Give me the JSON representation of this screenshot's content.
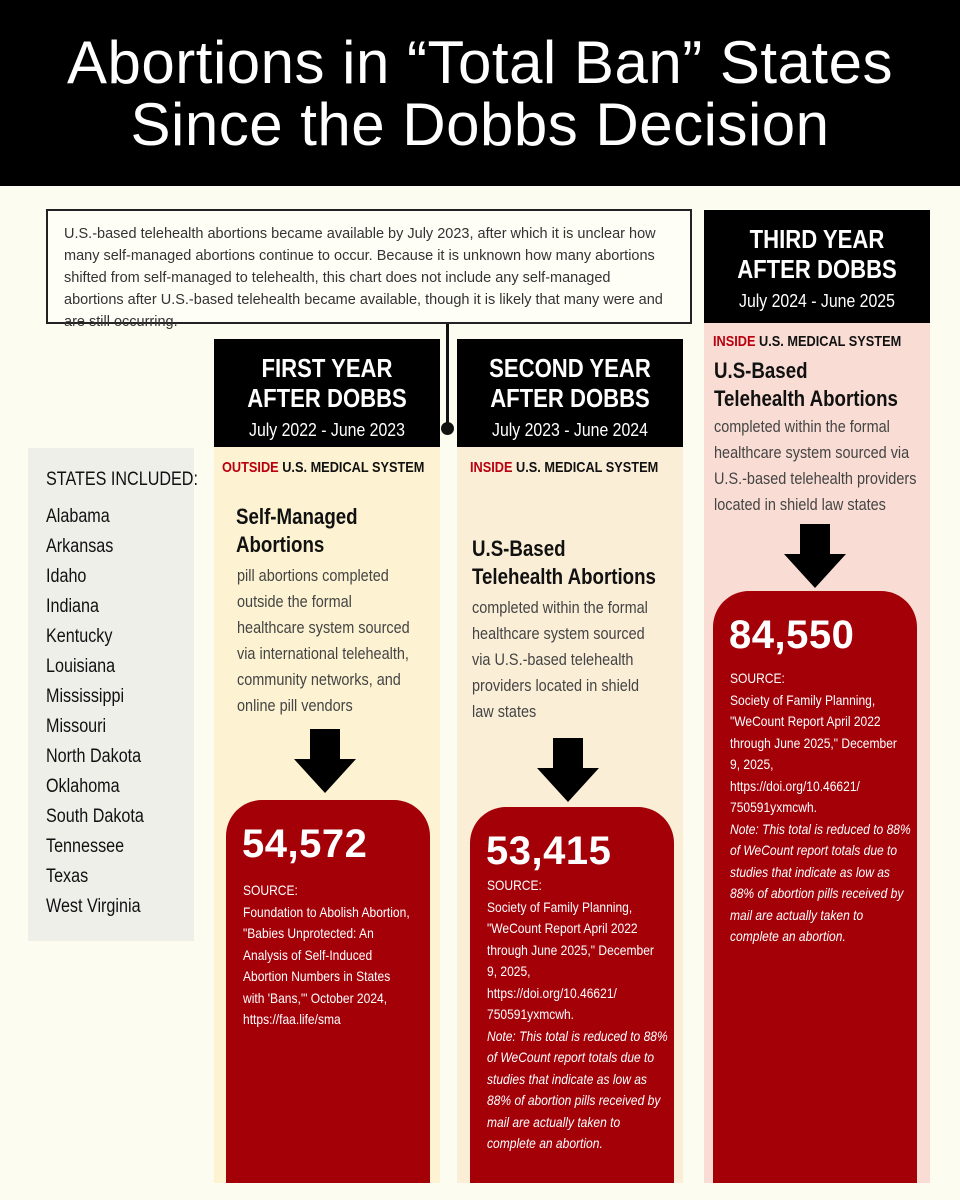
{
  "header": {
    "title_line1": "Abortions in “Total Ban” States",
    "title_line2": "Since the Dobbs Decision"
  },
  "note": {
    "text": "U.S.-based telehealth abortions became available by July 2023, after which it is unclear how many self-managed abortions continue to occur. Because it is unknown how many abortions shifted from self-managed to telehealth, this chart does not include any self-managed abortions after U.S.-based telehealth became available, though it is likely that many were and are still occurring."
  },
  "states": {
    "title": "STATES INCLUDED:",
    "list": [
      "Alabama",
      "Arkansas",
      "Idaho",
      "Indiana",
      "Kentucky",
      "Louisiana",
      "Mississippi",
      "Missouri",
      "North Dakota",
      "Oklahoma",
      "South Dakota",
      "Tennessee",
      "Texas",
      "West Virginia"
    ]
  },
  "columns": [
    {
      "year_line1": "FIRST YEAR",
      "year_line2": "AFTER DOBBS",
      "range": "July 2022 - June 2023",
      "system_highlight": "OUTSIDE",
      "system_rest": " U.S. MEDICAL SYSTEM",
      "title_line1": "Self-Managed",
      "title_line2": "Abortions",
      "desc": [
        "pill abortions completed",
        "outside the formal",
        "healthcare system sourced",
        "via international telehealth,",
        "community networks, and",
        "online pill vendors"
      ],
      "number": "54,572",
      "source_label": "SOURCE:",
      "source": [
        "Foundation to Abolish Abortion,",
        "\"Babies Unprotected: An",
        "Analysis of Self-Induced",
        "Abortion Numbers in States",
        "with 'Bans,'\" October 2024,",
        "https://faa.life/sma"
      ],
      "note": []
    },
    {
      "year_line1": "SECOND YEAR",
      "year_line2": "AFTER DOBBS",
      "range": "July 2023 - June 2024",
      "system_highlight": "INSIDE",
      "system_rest": " U.S. MEDICAL SYSTEM",
      "title_line1": "U.S-Based",
      "title_line2": "Telehealth Abortions",
      "desc": [
        "completed within the formal",
        "healthcare system sourced",
        "via U.S.-based telehealth",
        "providers located in shield",
        "law states"
      ],
      "number": "53,415",
      "source_label": "SOURCE:",
      "source": [
        "Society of Family Planning,",
        "\"WeCount Report April 2022",
        "through June 2025,\" December",
        "9, 2025,",
        "https://doi.org/10.46621/",
        "750591yxmcwh."
      ],
      "note": [
        "Note: This total is reduced to 88%",
        "of WeCount report totals due to",
        "studies that indicate as low as",
        "88% of abortion pills received by",
        "mail are actually taken to",
        "complete an abortion."
      ]
    },
    {
      "year_line1": "THIRD YEAR",
      "year_line2": "AFTER DOBBS",
      "range": "July 2024 - June 2025",
      "system_highlight": "INSIDE",
      "system_rest": " U.S. MEDICAL SYSTEM",
      "title_line1": "U.S-Based",
      "title_line2": "Telehealth Abortions",
      "desc": [
        "completed within the formal",
        "healthcare system sourced via",
        "U.S.-based telehealth providers",
        "located in shield law states"
      ],
      "number": "84,550",
      "source_label": "SOURCE:",
      "source": [
        "Society of Family Planning,",
        "\"WeCount Report April 2022",
        "through June 2025,\" December",
        "9, 2025,",
        "https://doi.org/10.46621/",
        "750591yxmcwh."
      ],
      "note": [
        "Note: This total is reduced to 88%",
        "of WeCount report totals due to",
        "studies that indicate as low as",
        "88% of abortion pills received by",
        "mail are actually taken to",
        "complete an abortion."
      ]
    }
  ]
}
